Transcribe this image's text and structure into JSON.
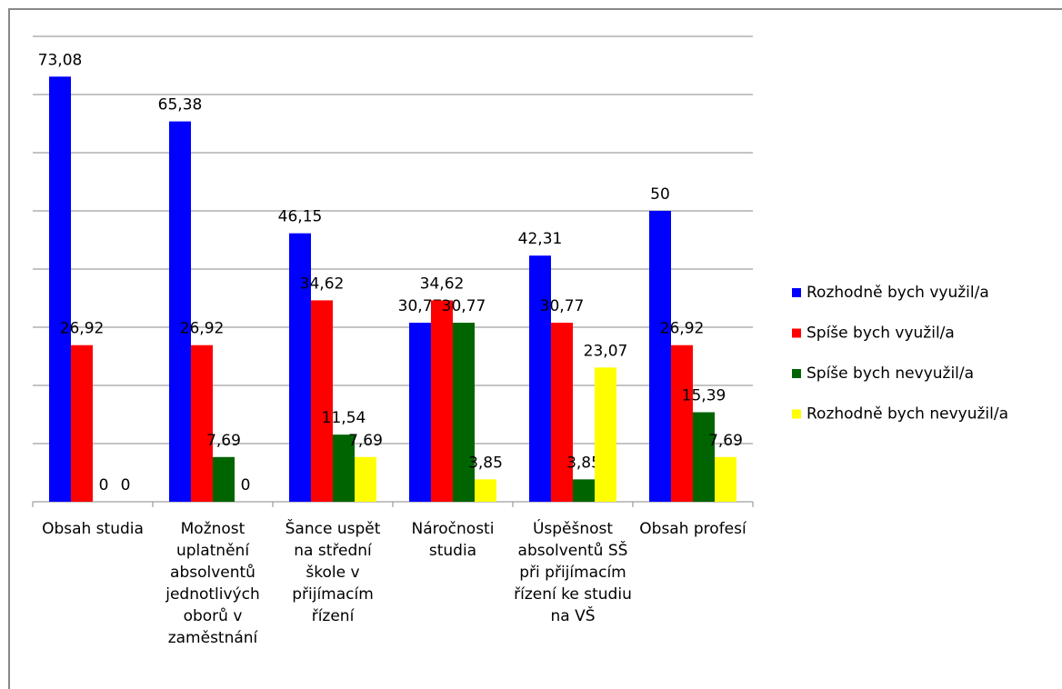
{
  "chart_data": {
    "type": "bar",
    "categories": [
      "Obsah studia",
      "Možnost uplatnění absolventů jednotlivých oborů v zaměstnání",
      "Šance uspět na střední škole v přijímacím řízení",
      "Náročnosti studia",
      "Úspěšnost absolventů SŠ při přijímacím řízení ke studiu na VŠ",
      "Obsah profesí"
    ],
    "series": [
      {
        "name": "Rozhodně bych využil/a",
        "color": "#0000ff",
        "values": [
          73.08,
          65.38,
          46.15,
          30.77,
          42.31,
          50
        ],
        "value_labels": [
          "73,08",
          "65,38",
          "46,15",
          "30,77",
          "42,31",
          "50"
        ]
      },
      {
        "name": "Spíše bych využil/a",
        "color": "#ff0000",
        "values": [
          26.92,
          26.92,
          34.62,
          34.62,
          30.77,
          26.92
        ],
        "value_labels": [
          "26,92",
          "26,92",
          "34,62",
          "34,62",
          "30,77",
          "26,92"
        ]
      },
      {
        "name": "Spíše bych nevyužil/a",
        "color": "#006400",
        "values": [
          0,
          7.69,
          11.54,
          30.77,
          3.85,
          15.39
        ],
        "value_labels": [
          "0",
          "7,69",
          "11,54",
          "30,77",
          "3,85",
          "15,39"
        ]
      },
      {
        "name": "Rozhodně bych nevyužil/a",
        "color": "#ffff00",
        "values": [
          0,
          0,
          7.69,
          3.85,
          23.07,
          7.69
        ],
        "value_labels": [
          "0",
          "0",
          "7,69",
          "3,85",
          "23,07",
          "7,69"
        ]
      }
    ],
    "ylim": [
      0,
      80
    ],
    "yticks": [
      0,
      10,
      20,
      30,
      40,
      50,
      60,
      70,
      80
    ],
    "grid": true,
    "legend": "right"
  }
}
